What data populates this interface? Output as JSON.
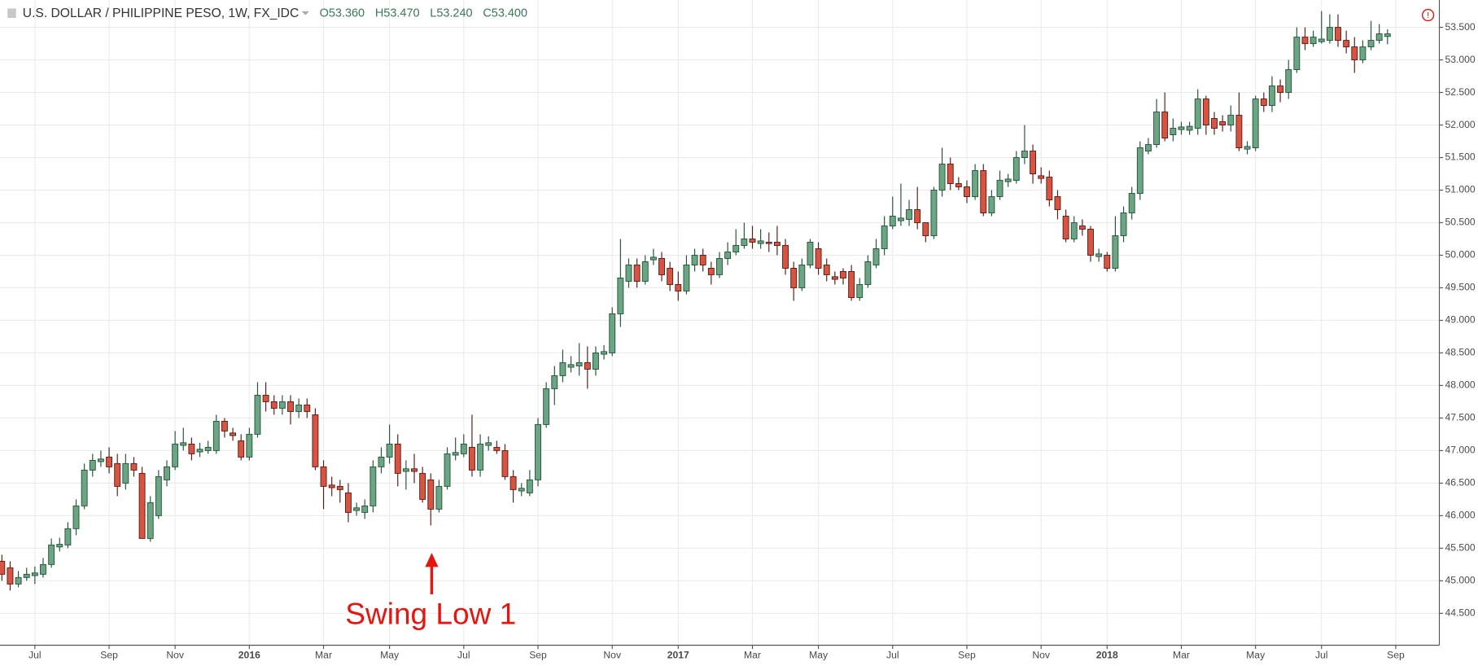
{
  "chart_data": {
    "type": "candlestick",
    "title": "U.S. DOLLAR / PHILIPPINE PESO, 1W, FX_IDC",
    "ohlc_header": [
      {
        "value": 53.36,
        "label": "O53.360"
      },
      {
        "value": 53.47,
        "label": "H53.470"
      },
      {
        "value": 53.24,
        "label": "L53.240"
      },
      {
        "value": 53.4,
        "label": "C53.400"
      }
    ],
    "annotations": [
      {
        "text": "Swing Low 1",
        "color": "#e8140f"
      }
    ],
    "up_color": "#6ba583",
    "down_color": "#d75442",
    "up_border": "#225437",
    "down_border": "#5b1a13",
    "grid": true,
    "ylim": [
      44.01,
      53.92
    ],
    "yticks": [
      {
        "value": 44.5,
        "label": "44.500"
      },
      {
        "value": 45,
        "label": "45.000"
      },
      {
        "value": 45.5,
        "label": "45.500"
      },
      {
        "value": 46,
        "label": "46.000"
      },
      {
        "value": 46.5,
        "label": "46.500"
      },
      {
        "value": 47,
        "label": "47.000"
      },
      {
        "value": 47.5,
        "label": "47.500"
      },
      {
        "value": 48,
        "label": "48.000"
      },
      {
        "value": 48.5,
        "label": "48.500"
      },
      {
        "value": 49,
        "label": "49.000"
      },
      {
        "value": 49.5,
        "label": "49.500"
      },
      {
        "value": 50,
        "label": "50.000"
      },
      {
        "value": 50.5,
        "label": "50.500"
      },
      {
        "value": 51,
        "label": "51.000"
      },
      {
        "value": 51.5,
        "label": "51.500"
      },
      {
        "value": 52,
        "label": "52.000"
      },
      {
        "value": 52.5,
        "label": "52.500"
      },
      {
        "value": 53,
        "label": "53.000"
      },
      {
        "value": 53.5,
        "label": "53.500"
      }
    ],
    "categories": [
      null,
      null,
      null,
      null,
      "Jul",
      null,
      null,
      null,
      null,
      null,
      null,
      null,
      null,
      "Sep",
      null,
      null,
      null,
      null,
      null,
      null,
      null,
      "Nov",
      null,
      null,
      null,
      null,
      null,
      null,
      null,
      null,
      "2016",
      null,
      null,
      null,
      null,
      null,
      null,
      null,
      null,
      "Mar",
      null,
      null,
      null,
      null,
      null,
      null,
      null,
      "May",
      null,
      null,
      null,
      null,
      null,
      null,
      null,
      null,
      "Jul",
      null,
      null,
      null,
      null,
      null,
      null,
      null,
      null,
      "Sep",
      null,
      null,
      null,
      null,
      null,
      null,
      null,
      null,
      "Nov",
      null,
      null,
      null,
      null,
      null,
      null,
      null,
      "2017",
      null,
      null,
      null,
      null,
      null,
      null,
      null,
      null,
      "Mar",
      null,
      null,
      null,
      null,
      null,
      null,
      null,
      "May",
      null,
      null,
      null,
      null,
      null,
      null,
      null,
      null,
      "Jul",
      null,
      null,
      null,
      null,
      null,
      null,
      null,
      null,
      "Sep",
      null,
      null,
      null,
      null,
      null,
      null,
      null,
      null,
      "Nov",
      null,
      null,
      null,
      null,
      null,
      null,
      null,
      "2018",
      null,
      null,
      null,
      null,
      null,
      null,
      null,
      null,
      "Mar",
      null,
      null,
      null,
      null,
      null,
      null,
      null,
      null,
      "May",
      null,
      null,
      null,
      null,
      null,
      null,
      null,
      "Jul",
      null,
      null,
      null,
      null,
      null,
      null,
      null,
      null,
      "Sep"
    ],
    "open": [
      45.3,
      45.2,
      44.95,
      45.05,
      45.08,
      45.1,
      45.25,
      45.52,
      45.55,
      45.8,
      46.15,
      46.7,
      46.83,
      46.9,
      46.8,
      46.5,
      46.8,
      46.65,
      45.65,
      46.0,
      46.55,
      46.75,
      47.08,
      47.1,
      46.98,
      47.0,
      47.0,
      47.45,
      47.27,
      47.15,
      46.9,
      47.25,
      47.85,
      47.75,
      47.65,
      47.75,
      47.6,
      47.7,
      47.55,
      46.75,
      46.47,
      46.45,
      46.35,
      46.08,
      46.05,
      46.15,
      46.75,
      46.9,
      47.1,
      46.68,
      46.72,
      46.65,
      46.55,
      46.1,
      46.45,
      46.93,
      46.95,
      47.05,
      46.7,
      47.08,
      47.05,
      47.0,
      46.6,
      46.38,
      46.35,
      46.55,
      47.4,
      47.95,
      48.15,
      48.28,
      48.3,
      48.35,
      48.25,
      48.48,
      48.5,
      49.1,
      49.6,
      49.85,
      49.6,
      49.93,
      49.95,
      49.8,
      49.55,
      49.45,
      49.85,
      50.0,
      49.8,
      49.7,
      49.95,
      50.05,
      50.15,
      50.25,
      50.18,
      50.2,
      50.2,
      50.15,
      49.8,
      49.5,
      49.85,
      50.1,
      49.85,
      49.67,
      49.75,
      49.75,
      49.35,
      49.55,
      49.85,
      50.1,
      50.45,
      50.53,
      50.55,
      50.7,
      50.5,
      50.3,
      51.0,
      51.4,
      51.1,
      51.05,
      50.9,
      51.3,
      50.65,
      50.9,
      51.13,
      51.15,
      51.5,
      51.6,
      51.22,
      51.2,
      50.9,
      50.6,
      50.25,
      50.45,
      50.4,
      49.98,
      50.0,
      49.8,
      50.3,
      50.65,
      50.95,
      51.6,
      51.7,
      52.2,
      51.85,
      51.93,
      51.92,
      51.95,
      52.4,
      52.1,
      52.05,
      52.0,
      52.15,
      51.63,
      51.65,
      52.4,
      52.3,
      52.6,
      52.5,
      52.85,
      53.35,
      53.25,
      53.28,
      53.3,
      53.5,
      53.3,
      53.2,
      53.0,
      53.2,
      53.3,
      53.36,
      null
    ],
    "high": [
      45.4,
      45.3,
      45.15,
      45.2,
      45.22,
      45.35,
      45.65,
      45.66,
      45.9,
      46.25,
      46.8,
      46.95,
      47.0,
      47.05,
      46.95,
      46.95,
      46.9,
      46.75,
      46.3,
      46.7,
      46.85,
      47.3,
      47.35,
      47.2,
      47.12,
      47.15,
      47.55,
      47.5,
      47.35,
      47.25,
      47.35,
      48.05,
      48.05,
      47.85,
      47.85,
      47.85,
      47.8,
      47.8,
      47.65,
      46.85,
      46.6,
      46.55,
      46.5,
      46.2,
      46.25,
      46.85,
      47.05,
      47.4,
      47.25,
      46.85,
      46.95,
      46.75,
      46.65,
      46.55,
      47.05,
      47.2,
      47.25,
      47.55,
      47.25,
      47.22,
      47.15,
      47.1,
      46.7,
      46.5,
      46.7,
      47.5,
      48.05,
      48.3,
      48.55,
      48.45,
      48.65,
      48.6,
      48.6,
      48.62,
      49.2,
      50.25,
      49.95,
      49.95,
      50.0,
      50.1,
      50.05,
      49.9,
      49.75,
      50.0,
      50.1,
      50.1,
      49.9,
      50.05,
      50.2,
      50.4,
      50.5,
      50.45,
      50.4,
      50.35,
      50.45,
      50.25,
      49.9,
      49.95,
      50.25,
      50.2,
      49.95,
      49.75,
      49.8,
      49.85,
      49.65,
      50.0,
      50.25,
      50.6,
      50.9,
      51.1,
      50.85,
      51.05,
      50.45,
      51.05,
      51.65,
      51.5,
      51.2,
      51.15,
      51.4,
      51.4,
      51.0,
      51.3,
      51.25,
      51.6,
      52.0,
      51.7,
      51.35,
      51.3,
      51.0,
      50.7,
      50.6,
      50.55,
      50.45,
      50.1,
      50.05,
      50.6,
      50.75,
      51.05,
      51.75,
      51.8,
      52.4,
      52.5,
      52.1,
      52.05,
      52.05,
      52.55,
      52.45,
      52.2,
      52.15,
      52.3,
      52.5,
      51.75,
      52.45,
      52.5,
      52.75,
      52.7,
      53.0,
      53.5,
      53.5,
      53.45,
      53.75,
      53.7,
      53.7,
      53.45,
      53.35,
      53.3,
      53.6,
      53.55,
      53.47,
      null
    ],
    "low": [
      45.0,
      44.85,
      44.9,
      45.0,
      44.95,
      45.05,
      45.2,
      45.45,
      45.5,
      45.7,
      46.1,
      46.6,
      46.75,
      46.65,
      46.3,
      46.4,
      46.6,
      45.65,
      45.6,
      45.95,
      46.45,
      46.7,
      47.0,
      46.85,
      46.9,
      46.95,
      46.95,
      47.2,
      47.15,
      46.85,
      46.85,
      47.2,
      47.6,
      47.55,
      47.55,
      47.4,
      47.5,
      47.5,
      46.7,
      46.1,
      46.3,
      46.2,
      45.9,
      46.0,
      45.95,
      46.05,
      46.65,
      46.8,
      46.45,
      46.4,
      46.5,
      46.2,
      45.85,
      46.05,
      46.4,
      46.85,
      46.9,
      46.6,
      46.6,
      47.0,
      46.95,
      46.55,
      46.2,
      46.3,
      46.3,
      46.45,
      47.35,
      47.7,
      48.05,
      48.2,
      48.15,
      47.95,
      48.15,
      48.4,
      48.45,
      48.9,
      49.5,
      49.5,
      49.55,
      49.85,
      49.6,
      49.45,
      49.3,
      49.4,
      49.75,
      49.75,
      49.55,
      49.65,
      49.85,
      50.0,
      50.1,
      50.1,
      50.1,
      50.05,
      50.0,
      49.7,
      49.3,
      49.45,
      49.8,
      49.7,
      49.6,
      49.55,
      49.55,
      49.3,
      49.3,
      49.5,
      49.8,
      50.0,
      50.4,
      50.45,
      50.45,
      50.4,
      50.2,
      50.25,
      50.9,
      51.0,
      51.0,
      50.8,
      50.85,
      50.6,
      50.6,
      50.85,
      51.05,
      51.1,
      51.4,
      51.1,
      51.1,
      50.75,
      50.55,
      50.2,
      50.2,
      50.3,
      49.9,
      49.9,
      49.75,
      49.75,
      50.2,
      50.55,
      50.85,
      51.55,
      51.65,
      51.75,
      51.75,
      51.85,
      51.85,
      51.85,
      51.85,
      51.85,
      51.9,
      51.9,
      51.6,
      51.55,
      51.6,
      52.2,
      52.2,
      52.35,
      52.4,
      52.8,
      53.15,
      53.2,
      53.25,
      53.25,
      53.2,
      53.1,
      52.8,
      52.95,
      53.15,
      53.25,
      53.24,
      null
    ],
    "close": [
      45.1,
      44.95,
      45.05,
      45.1,
      45.12,
      45.25,
      45.55,
      45.56,
      45.8,
      46.15,
      46.7,
      46.85,
      46.87,
      46.75,
      46.45,
      46.8,
      46.7,
      45.65,
      46.2,
      46.6,
      46.75,
      47.1,
      47.12,
      46.95,
      47.02,
      47.05,
      47.45,
      47.3,
      47.23,
      46.9,
      47.25,
      47.85,
      47.75,
      47.65,
      47.75,
      47.6,
      47.7,
      47.6,
      46.75,
      46.45,
      46.43,
      46.4,
      46.05,
      46.12,
      46.15,
      46.75,
      46.9,
      47.1,
      46.65,
      46.72,
      46.68,
      46.25,
      46.1,
      46.45,
      46.95,
      46.97,
      47.1,
      46.7,
      47.1,
      47.12,
      47.0,
      46.6,
      46.4,
      46.42,
      46.55,
      47.4,
      47.95,
      48.15,
      48.35,
      48.32,
      48.35,
      48.25,
      48.5,
      48.52,
      49.1,
      49.65,
      49.85,
      49.6,
      49.9,
      49.97,
      49.7,
      49.55,
      49.45,
      49.85,
      50.0,
      49.85,
      49.7,
      49.95,
      50.05,
      50.15,
      50.25,
      50.2,
      50.22,
      50.18,
      50.15,
      49.8,
      49.5,
      49.85,
      50.2,
      49.8,
      49.7,
      49.63,
      49.65,
      49.35,
      49.55,
      49.9,
      50.1,
      50.45,
      50.6,
      50.57,
      50.7,
      50.5,
      50.3,
      51.0,
      51.4,
      51.1,
      51.05,
      50.9,
      51.3,
      50.65,
      50.9,
      51.15,
      51.17,
      51.5,
      51.6,
      51.25,
      51.18,
      50.85,
      50.7,
      50.25,
      50.5,
      50.4,
      50.0,
      50.02,
      49.8,
      50.3,
      50.65,
      50.95,
      51.65,
      51.7,
      52.2,
      51.8,
      51.95,
      51.97,
      51.98,
      52.4,
      52.0,
      51.95,
      52.0,
      52.15,
      51.65,
      51.67,
      52.4,
      52.3,
      52.6,
      52.5,
      52.85,
      53.35,
      53.25,
      53.35,
      53.32,
      53.5,
      53.3,
      53.2,
      53.0,
      53.2,
      53.3,
      53.4,
      53.4,
      null
    ]
  }
}
